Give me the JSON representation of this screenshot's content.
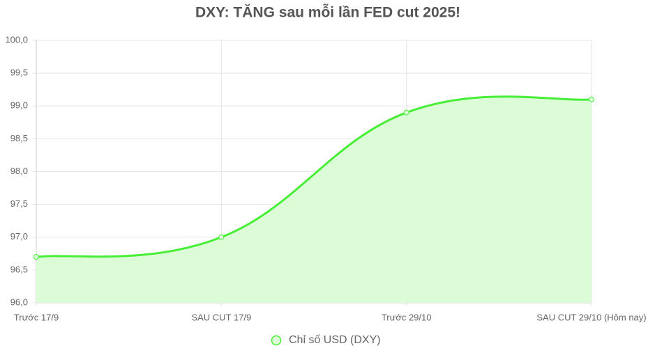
{
  "chart_data": {
    "type": "line",
    "title": "DXY: TĂNG sau mỗi lần FED cut 2025!",
    "categories": [
      "Trước 17/9",
      "SAU CUT 17/9",
      "Trước 29/10",
      "SAU CUT 29/10 (Hôm nay)"
    ],
    "series": [
      {
        "name": "Chỉ số USD (DXY)",
        "color": "#47ee36",
        "fill": "#dcfcd8",
        "values": [
          96.7,
          97.0,
          98.9,
          99.1
        ]
      }
    ],
    "ylim": [
      96,
      100
    ],
    "yticks": [
      {
        "value": 96,
        "label": "96,0"
      },
      {
        "value": 96.5,
        "label": "96,5"
      },
      {
        "value": 97,
        "label": "97,0"
      },
      {
        "value": 97.5,
        "label": "97,5"
      },
      {
        "value": 98,
        "label": "98,0"
      },
      {
        "value": 98.5,
        "label": "98,5"
      },
      {
        "value": 99,
        "label": "99,0"
      },
      {
        "value": 99.5,
        "label": "99,5"
      },
      {
        "value": 100,
        "label": "100,0"
      }
    ],
    "grid": true,
    "legend": "bottom"
  }
}
